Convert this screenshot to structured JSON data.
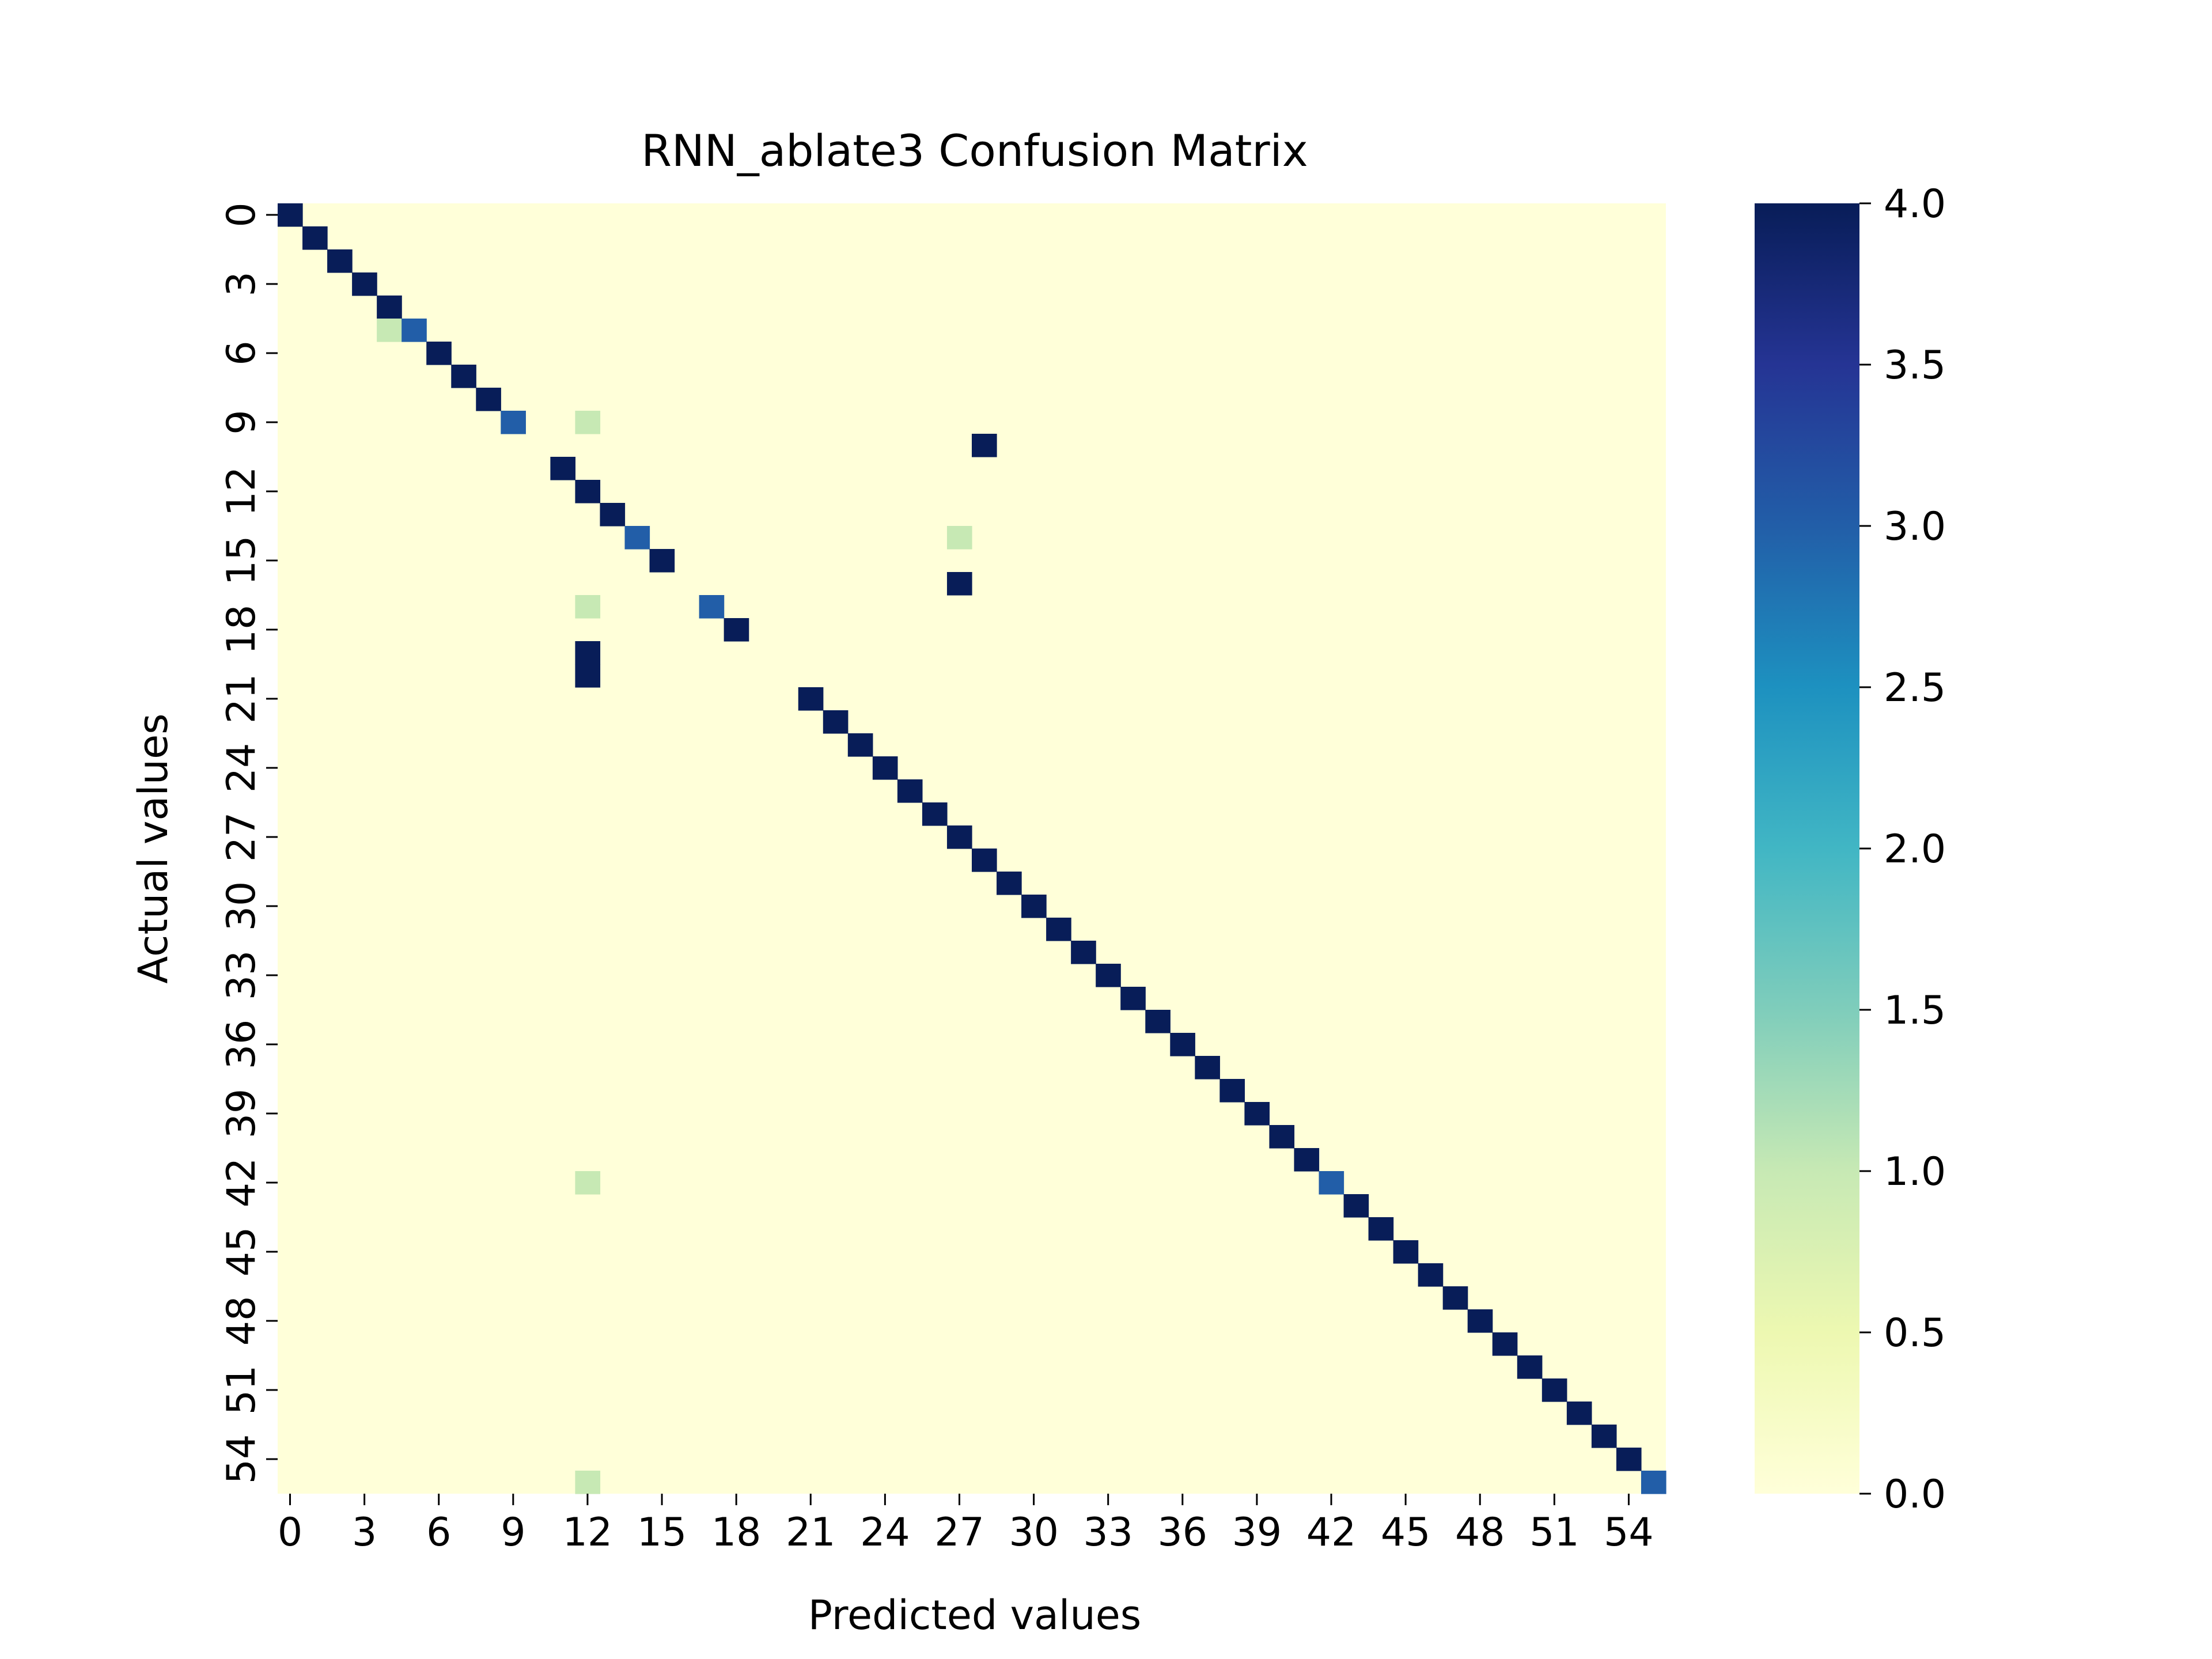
{
  "chart_data": {
    "type": "heatmap",
    "title": "RNN_ablate3 Confusion Matrix",
    "xlabel": "Predicted values",
    "ylabel": "Actual values",
    "n_classes": 56,
    "x_tick_labels": [
      "0",
      "3",
      "6",
      "9",
      "12",
      "15",
      "18",
      "21",
      "24",
      "27",
      "30",
      "33",
      "36",
      "39",
      "42",
      "45",
      "48",
      "51",
      "54"
    ],
    "y_tick_labels": [
      "0",
      "3",
      "6",
      "9",
      "12",
      "15",
      "18",
      "21",
      "24",
      "27",
      "30",
      "33",
      "36",
      "39",
      "42",
      "45",
      "48",
      "51",
      "54"
    ],
    "colorbar": {
      "min": 0.0,
      "max": 4.0,
      "tick_labels": [
        "0.0",
        "0.5",
        "1.0",
        "1.5",
        "2.0",
        "2.5",
        "3.0",
        "3.5",
        "4.0"
      ],
      "colormap": "YlGnBu",
      "stops": [
        "#ffffd9",
        "#edf8b1",
        "#c7e9b4",
        "#7fcdbb",
        "#41b6c4",
        "#1d91c0",
        "#225ea8",
        "#253494",
        "#081d58"
      ]
    },
    "default_diagonal_value": 4,
    "cells": [
      {
        "row": 5,
        "col": 4,
        "value": 1
      },
      {
        "row": 5,
        "col": 5,
        "value": 3
      },
      {
        "row": 9,
        "col": 9,
        "value": 3
      },
      {
        "row": 9,
        "col": 12,
        "value": 1
      },
      {
        "row": 10,
        "col": 10,
        "value": 0
      },
      {
        "row": 10,
        "col": 28,
        "value": 4
      },
      {
        "row": 14,
        "col": 14,
        "value": 3
      },
      {
        "row": 14,
        "col": 27,
        "value": 1
      },
      {
        "row": 16,
        "col": 16,
        "value": 0
      },
      {
        "row": 16,
        "col": 27,
        "value": 4
      },
      {
        "row": 17,
        "col": 12,
        "value": 1
      },
      {
        "row": 17,
        "col": 17,
        "value": 3
      },
      {
        "row": 19,
        "col": 19,
        "value": 0
      },
      {
        "row": 19,
        "col": 12,
        "value": 4
      },
      {
        "row": 20,
        "col": 20,
        "value": 0
      },
      {
        "row": 20,
        "col": 12,
        "value": 4
      },
      {
        "row": 42,
        "col": 12,
        "value": 1
      },
      {
        "row": 42,
        "col": 42,
        "value": 3
      },
      {
        "row": 55,
        "col": 12,
        "value": 1
      },
      {
        "row": 55,
        "col": 55,
        "value": 3
      }
    ]
  }
}
